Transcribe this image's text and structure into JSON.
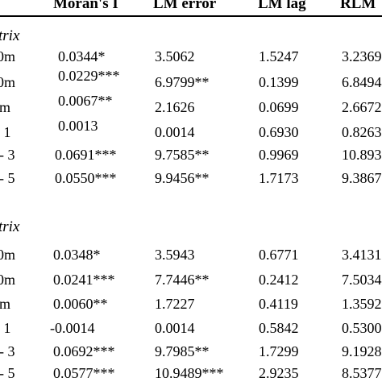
{
  "header": {
    "columns": [
      "Moran's I",
      "LM error",
      "LM lag",
      "RLM"
    ]
  },
  "sections": [
    {
      "label": "trix",
      "rows": [
        {
          "label": "0m",
          "values": [
            "0.0344*",
            "3.5062",
            "1.5247",
            "3.2369"
          ]
        },
        {
          "label": "0m",
          "values": [
            "0.0229***",
            "6.9799**",
            "0.1399",
            "6.8494"
          ]
        },
        {
          "label": "m",
          "values": [
            "0.0067**",
            "2.1626",
            "0.0699",
            "2.6672"
          ]
        },
        {
          "label": "- 1",
          "values": [
            "0.0013",
            "0.0014",
            "0.6930",
            "0.8263"
          ]
        },
        {
          "label": "- 3",
          "values": [
            "0.0691***",
            "9.7585**",
            "0.9969",
            "10.893"
          ]
        },
        {
          "label": "- 5",
          "values": [
            "0.0550***",
            "9.9456**",
            "1.7173",
            "9.3867"
          ]
        }
      ]
    },
    {
      "label": "trix",
      "rows": [
        {
          "label": "0m",
          "values": [
            "0.0348*",
            "3.5943",
            "0.6771",
            "3.4131"
          ]
        },
        {
          "label": "0m",
          "values": [
            "0.0241***",
            "7.7446**",
            "0.2412",
            "7.5034"
          ]
        },
        {
          "label": "m",
          "values": [
            "0.0060**",
            "1.7227",
            "0.4119",
            "1.3592"
          ]
        },
        {
          "label": "- 1",
          "values": [
            "-0.0014",
            "0.0014",
            "0.5842",
            "0.5300"
          ]
        },
        {
          "label": "- 3",
          "values": [
            "0.0692***",
            "9.7985**",
            "1.7299",
            "9.1928"
          ]
        },
        {
          "label": "- 5",
          "values": [
            "0.0577***",
            "10.9489***",
            "2.9235",
            "8.5377"
          ]
        }
      ]
    }
  ]
}
